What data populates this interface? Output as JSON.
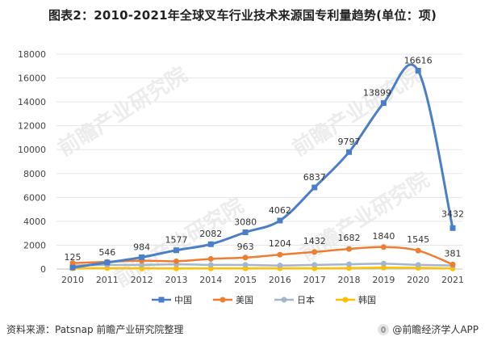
{
  "title": "图表2：2010-2021年全球叉车行业技术来源国专利量趋势(单位：项)",
  "footer": {
    "source": "资料来源：Patsnap 前瞻产业研究院整理",
    "brand": "@前瞻经济学人APP"
  },
  "watermark": {
    "text": "前瞻产业研究院"
  },
  "chart_data": {
    "type": "line",
    "title": "图表2：2010-2021年全球叉车行业技术来源国专利量趋势(单位：项)",
    "xlabel": "",
    "ylabel": "",
    "ylim": [
      0,
      18000
    ],
    "yticks": [
      "0",
      "2000",
      "4000",
      "6000",
      "8000",
      "10000",
      "12000",
      "14000",
      "16000",
      "18000"
    ],
    "categories": [
      "2010",
      "2011",
      "2012",
      "2013",
      "2014",
      "2015",
      "2016",
      "2017",
      "2018",
      "2019",
      "2020",
      "2021"
    ],
    "legend_position": "bottom",
    "series": [
      {
        "name": "中国",
        "color": "#4a7fc8",
        "marker": "square",
        "values": [
          125,
          546,
          984,
          1577,
          2082,
          3080,
          4062,
          6837,
          9797,
          13899,
          16616,
          3432
        ],
        "labels": [
          "125",
          "546",
          "984",
          "1577",
          "2082",
          "3080",
          "4062",
          "6837",
          "9797",
          "13899",
          "16616",
          "3432"
        ]
      },
      {
        "name": "美国",
        "color": "#ee7d31",
        "marker": "circle",
        "values": [
          500,
          600,
          700,
          650,
          850,
          963,
          1204,
          1432,
          1682,
          1840,
          1545,
          381
        ],
        "labels": [
          "",
          "",
          "",
          "",
          "",
          "963",
          "1204",
          "1432",
          "1682",
          "1840",
          "1545",
          "381"
        ]
      },
      {
        "name": "日本",
        "color": "#a5b6c9",
        "marker": "circle",
        "values": [
          300,
          350,
          350,
          400,
          350,
          350,
          300,
          350,
          400,
          450,
          350,
          300
        ],
        "labels": []
      },
      {
        "name": "韩国",
        "color": "#ffc000",
        "marker": "circle",
        "values": [
          50,
          80,
          60,
          50,
          60,
          60,
          70,
          60,
          80,
          120,
          100,
          50
        ],
        "labels": []
      }
    ]
  }
}
